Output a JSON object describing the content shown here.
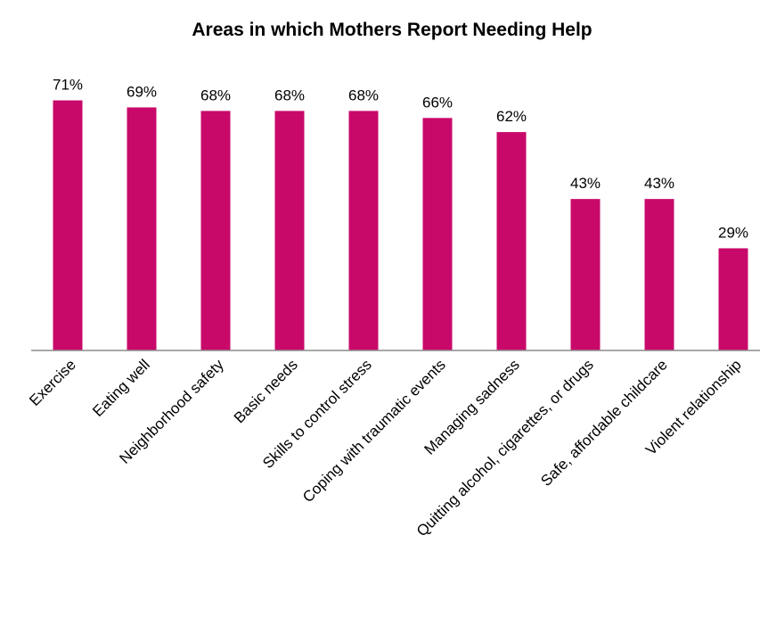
{
  "chart_data": {
    "type": "bar",
    "title": "Areas in which Mothers Report Needing Help",
    "categories": [
      "Exercise",
      "Eating well",
      "Neighborhood safety",
      "Basic needs",
      "Skills to control stress",
      "Coping with traumatic events",
      "Managing sadness",
      "Quitting alcohol, cigarettes, or drugs",
      "Safe, affordable childcare",
      "Violent relationship"
    ],
    "values": [
      71,
      69,
      68,
      68,
      68,
      66,
      62,
      43,
      43,
      29
    ],
    "data_labels": [
      "71%",
      "69%",
      "68%",
      "68%",
      "68%",
      "66%",
      "62%",
      "43%",
      "43%",
      "29%"
    ],
    "value_unit": "%",
    "ylim": [
      0,
      100
    ],
    "grid": false,
    "legend": "none",
    "bar_color": "#C9096A",
    "axis_color": "#8C8C8C"
  }
}
